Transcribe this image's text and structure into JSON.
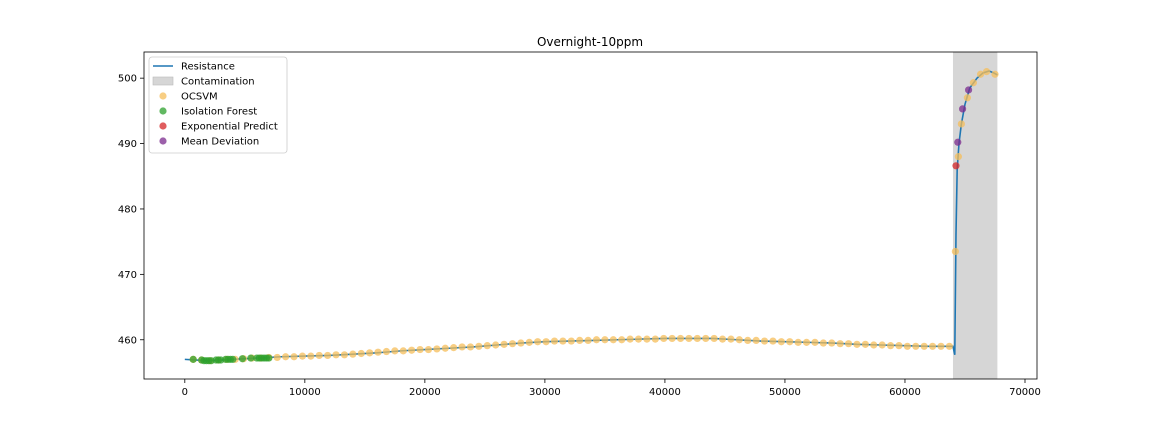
{
  "chart_data": {
    "type": "line",
    "title": "Overnight-10ppm",
    "xlabel": "",
    "ylabel": "",
    "xlim": [
      -3400,
      71000
    ],
    "ylim": [
      454,
      504
    ],
    "x_ticks": [
      0,
      10000,
      20000,
      30000,
      40000,
      50000,
      60000,
      70000
    ],
    "x_tick_labels": [
      "0",
      "10000",
      "20000",
      "30000",
      "40000",
      "50000",
      "60000",
      "70000"
    ],
    "y_ticks": [
      460,
      470,
      480,
      490,
      500
    ],
    "y_tick_labels": [
      "460",
      "470",
      "480",
      "490",
      "500"
    ],
    "grid": false,
    "legend_position": "upper-left",
    "contamination": {
      "label": "Contamination",
      "x_start": 64000,
      "x_end": 67700,
      "color": "#d6d6d6"
    },
    "series": [
      {
        "name": "Resistance",
        "kind": "line",
        "color": "#1f77b4",
        "points": [
          [
            0,
            457.0
          ],
          [
            1000,
            456.9
          ],
          [
            2000,
            456.8
          ],
          [
            3000,
            456.9
          ],
          [
            4000,
            457.0
          ],
          [
            5000,
            457.1
          ],
          [
            6000,
            457.2
          ],
          [
            7000,
            457.3
          ],
          [
            8000,
            457.4
          ],
          [
            10000,
            457.5
          ],
          [
            12000,
            457.6
          ],
          [
            14000,
            457.8
          ],
          [
            16000,
            458.0
          ],
          [
            18000,
            458.3
          ],
          [
            20000,
            458.5
          ],
          [
            22000,
            458.7
          ],
          [
            24000,
            458.9
          ],
          [
            26000,
            459.2
          ],
          [
            28000,
            459.5
          ],
          [
            30000,
            459.7
          ],
          [
            32000,
            459.8
          ],
          [
            34000,
            459.9
          ],
          [
            36000,
            460.0
          ],
          [
            38000,
            460.1
          ],
          [
            40000,
            460.2
          ],
          [
            42000,
            460.2
          ],
          [
            44000,
            460.2
          ],
          [
            46000,
            460.0
          ],
          [
            48000,
            459.8
          ],
          [
            50000,
            459.7
          ],
          [
            52000,
            459.6
          ],
          [
            54000,
            459.5
          ],
          [
            56000,
            459.3
          ],
          [
            58000,
            459.2
          ],
          [
            60000,
            459.1
          ],
          [
            62000,
            459.0
          ],
          [
            63500,
            459.0
          ],
          [
            64000,
            459.0
          ],
          [
            64150,
            457.7
          ],
          [
            64250,
            476.0
          ],
          [
            64350,
            486.0
          ],
          [
            64500,
            490.0
          ],
          [
            64700,
            493.0
          ],
          [
            65000,
            496.0
          ],
          [
            65400,
            498.5
          ],
          [
            66000,
            500.0
          ],
          [
            66500,
            500.8
          ],
          [
            67000,
            501.1
          ],
          [
            67400,
            500.8
          ],
          [
            67700,
            500.5
          ]
        ]
      },
      {
        "name": "OCSVM",
        "kind": "scatter",
        "color": "#f5be5a",
        "points": [
          [
            700,
            457.0
          ],
          [
            1400,
            456.9
          ],
          [
            2100,
            456.8
          ],
          [
            2800,
            456.9
          ],
          [
            3500,
            457.0
          ],
          [
            4200,
            457.0
          ],
          [
            4900,
            457.1
          ],
          [
            5600,
            457.2
          ],
          [
            6300,
            457.2
          ],
          [
            7000,
            457.3
          ],
          [
            7700,
            457.3
          ],
          [
            8400,
            457.4
          ],
          [
            9100,
            457.4
          ],
          [
            9800,
            457.5
          ],
          [
            10500,
            457.5
          ],
          [
            11200,
            457.6
          ],
          [
            11900,
            457.6
          ],
          [
            12600,
            457.7
          ],
          [
            13300,
            457.7
          ],
          [
            14000,
            457.8
          ],
          [
            14700,
            457.9
          ],
          [
            15400,
            458.0
          ],
          [
            16100,
            458.1
          ],
          [
            16800,
            458.2
          ],
          [
            17500,
            458.3
          ],
          [
            18200,
            458.3
          ],
          [
            18900,
            458.4
          ],
          [
            19600,
            458.5
          ],
          [
            20300,
            458.5
          ],
          [
            21000,
            458.6
          ],
          [
            21700,
            458.7
          ],
          [
            22400,
            458.8
          ],
          [
            23100,
            458.9
          ],
          [
            23800,
            458.9
          ],
          [
            24500,
            459.0
          ],
          [
            25200,
            459.1
          ],
          [
            25900,
            459.2
          ],
          [
            26600,
            459.3
          ],
          [
            27300,
            459.4
          ],
          [
            28000,
            459.5
          ],
          [
            28700,
            459.6
          ],
          [
            29400,
            459.7
          ],
          [
            30100,
            459.7
          ],
          [
            30800,
            459.8
          ],
          [
            31500,
            459.8
          ],
          [
            32200,
            459.8
          ],
          [
            32900,
            459.9
          ],
          [
            33600,
            459.9
          ],
          [
            34300,
            460.0
          ],
          [
            35000,
            460.0
          ],
          [
            35700,
            460.0
          ],
          [
            36400,
            460.0
          ],
          [
            37100,
            460.1
          ],
          [
            37800,
            460.1
          ],
          [
            38500,
            460.1
          ],
          [
            39200,
            460.1
          ],
          [
            39900,
            460.2
          ],
          [
            40600,
            460.2
          ],
          [
            41300,
            460.2
          ],
          [
            42000,
            460.2
          ],
          [
            42700,
            460.2
          ],
          [
            43400,
            460.2
          ],
          [
            44100,
            460.2
          ],
          [
            44800,
            460.1
          ],
          [
            45500,
            460.1
          ],
          [
            46200,
            460.0
          ],
          [
            46900,
            459.9
          ],
          [
            47600,
            459.9
          ],
          [
            48300,
            459.8
          ],
          [
            49000,
            459.8
          ],
          [
            49700,
            459.7
          ],
          [
            50400,
            459.7
          ],
          [
            51100,
            459.6
          ],
          [
            51800,
            459.6
          ],
          [
            52500,
            459.6
          ],
          [
            53200,
            459.5
          ],
          [
            53900,
            459.5
          ],
          [
            54600,
            459.4
          ],
          [
            55300,
            459.4
          ],
          [
            56000,
            459.3
          ],
          [
            56700,
            459.3
          ],
          [
            57400,
            459.2
          ],
          [
            58100,
            459.2
          ],
          [
            58800,
            459.1
          ],
          [
            59500,
            459.1
          ],
          [
            60200,
            459.0
          ],
          [
            60900,
            459.0
          ],
          [
            61600,
            459.0
          ],
          [
            62300,
            459.0
          ],
          [
            63000,
            459.0
          ],
          [
            63700,
            459.0
          ],
          [
            64200,
            473.5
          ],
          [
            64450,
            488.0
          ],
          [
            64700,
            493.0
          ],
          [
            65200,
            497.0
          ],
          [
            65700,
            499.3
          ],
          [
            66300,
            500.6
          ],
          [
            66800,
            501.0
          ],
          [
            67500,
            500.6
          ]
        ]
      },
      {
        "name": "Isolation Forest",
        "kind": "scatter",
        "color": "#2ca02c",
        "points": [
          [
            700,
            457.0
          ],
          [
            1400,
            456.9
          ],
          [
            1600,
            456.8
          ],
          [
            1800,
            456.8
          ],
          [
            2000,
            456.8
          ],
          [
            2200,
            456.8
          ],
          [
            2600,
            456.9
          ],
          [
            2800,
            456.9
          ],
          [
            3000,
            456.9
          ],
          [
            3400,
            457.0
          ],
          [
            3600,
            457.0
          ],
          [
            3800,
            457.0
          ],
          [
            4000,
            457.0
          ],
          [
            4800,
            457.1
          ],
          [
            5500,
            457.2
          ],
          [
            6000,
            457.2
          ],
          [
            6200,
            457.2
          ],
          [
            6400,
            457.2
          ],
          [
            6600,
            457.2
          ],
          [
            6800,
            457.2
          ],
          [
            7000,
            457.2
          ]
        ]
      },
      {
        "name": "Exponential Predict",
        "kind": "scatter",
        "color": "#d62728",
        "points": [
          [
            64250,
            486.6
          ]
        ]
      },
      {
        "name": "Mean Deviation",
        "kind": "scatter",
        "color": "#7b2b8e",
        "points": [
          [
            64400,
            490.2
          ],
          [
            64800,
            495.3
          ],
          [
            65300,
            498.2
          ]
        ]
      }
    ]
  }
}
